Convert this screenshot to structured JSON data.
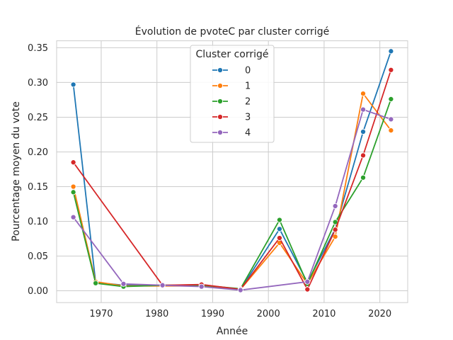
{
  "chart_data": {
    "type": "line",
    "title": "Évolution de pvoteC par cluster corrigé",
    "xlabel": "Année",
    "ylabel": "Pourcentage moyen du vote",
    "xlim": [
      1962,
      2025
    ],
    "ylim": [
      -0.017,
      0.36
    ],
    "x_ticks": [
      1970,
      1980,
      1990,
      2000,
      2010,
      2020
    ],
    "y_ticks": [
      0.0,
      0.05,
      0.1,
      0.15,
      0.2,
      0.25,
      0.3,
      0.35
    ],
    "x_tick_labels": [
      "1970",
      "1980",
      "1990",
      "2000",
      "2010",
      "2020"
    ],
    "y_tick_labels": [
      "0.00",
      "0.05",
      "0.10",
      "0.15",
      "0.20",
      "0.25",
      "0.30",
      "0.35"
    ],
    "grid": true,
    "legend_title": "Cluster corrigé",
    "legend_position": "top-center",
    "series": [
      {
        "name": "0",
        "color": "#1f77b4",
        "points": [
          [
            1965,
            0.297
          ],
          [
            1969,
            0.012
          ],
          [
            1974,
            0.008
          ],
          [
            1981,
            0.008
          ],
          [
            1988,
            0.007
          ],
          [
            1995,
            0.002
          ],
          [
            2002,
            0.089
          ],
          [
            2007,
            0.012
          ],
          [
            2012,
            0.089
          ],
          [
            2017,
            0.229
          ],
          [
            2022,
            0.345
          ]
        ]
      },
      {
        "name": "1",
        "color": "#ff7f0e",
        "points": [
          [
            1965,
            0.15
          ],
          [
            1969,
            0.013
          ],
          [
            1974,
            0.007
          ],
          [
            1981,
            0.007
          ],
          [
            1988,
            0.007
          ],
          [
            1995,
            0.002
          ],
          [
            2002,
            0.069
          ],
          [
            2007,
            0.01
          ],
          [
            2012,
            0.078
          ],
          [
            2017,
            0.284
          ],
          [
            2022,
            0.231
          ]
        ]
      },
      {
        "name": "2",
        "color": "#2ca02c",
        "points": [
          [
            1965,
            0.142
          ],
          [
            1969,
            0.011
          ],
          [
            1974,
            0.006
          ],
          [
            1981,
            0.008
          ],
          [
            1988,
            0.008
          ],
          [
            1995,
            0.003
          ],
          [
            2002,
            0.102
          ],
          [
            2007,
            0.01
          ],
          [
            2012,
            0.099
          ],
          [
            2017,
            0.163
          ],
          [
            2022,
            0.276
          ]
        ]
      },
      {
        "name": "3",
        "color": "#d62728",
        "points": [
          [
            1965,
            0.185
          ],
          [
            1981,
            0.008
          ],
          [
            1988,
            0.009
          ],
          [
            1995,
            0.002
          ],
          [
            2002,
            0.076
          ],
          [
            2007,
            0.002
          ],
          [
            2012,
            0.088
          ],
          [
            2017,
            0.195
          ],
          [
            2022,
            0.318
          ]
        ]
      },
      {
        "name": "4",
        "color": "#9467bd",
        "points": [
          [
            1965,
            0.106
          ],
          [
            1974,
            0.01
          ],
          [
            1981,
            0.008
          ],
          [
            1988,
            0.006
          ],
          [
            1995,
            0.001
          ],
          [
            2007,
            0.013
          ],
          [
            2012,
            0.122
          ],
          [
            2017,
            0.261
          ],
          [
            2022,
            0.247
          ]
        ]
      }
    ]
  }
}
